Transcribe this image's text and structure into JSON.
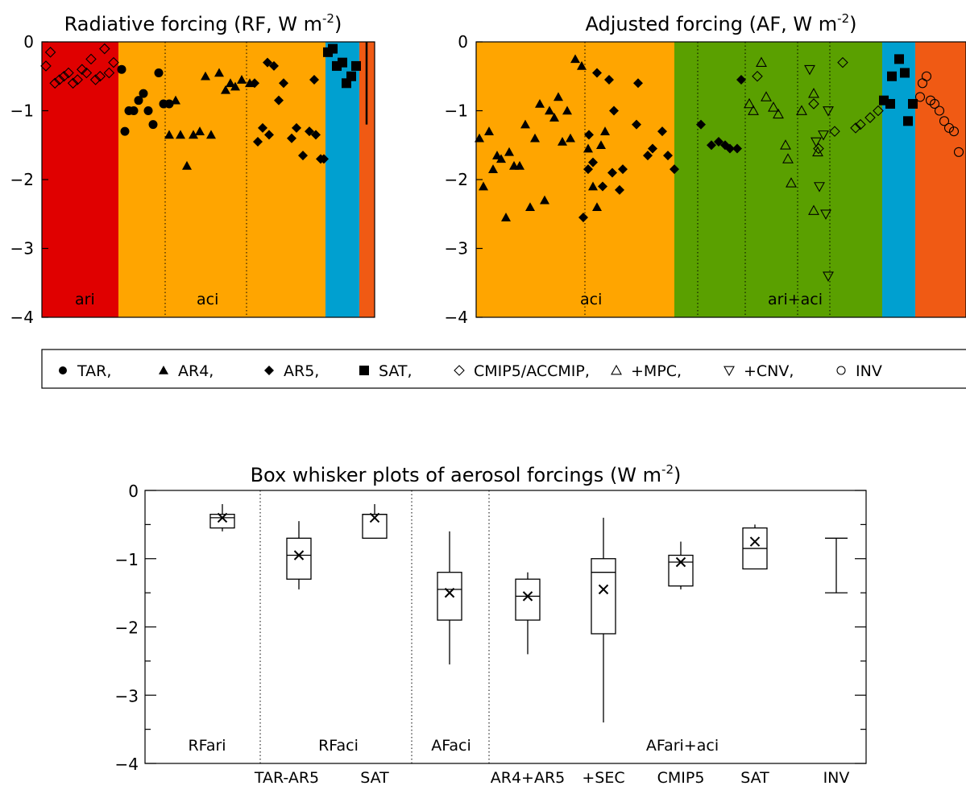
{
  "chart_data": [
    {
      "type": "scatter",
      "title": "Radiative forcing (RF, W m",
      "title_sup": "-2",
      "title_end": ")",
      "ylim": [
        -4,
        0
      ],
      "yticks": [
        "0",
        "-1",
        "-2",
        "-3",
        "-4"
      ],
      "regions": [
        {
          "label": "ari",
          "color": "#e00000"
        },
        {
          "label": "aci",
          "color": "#ffa500"
        },
        {
          "label": "",
          "color": "#00a0d0"
        },
        {
          "label": "",
          "color": "#f05a14"
        }
      ],
      "series": [
        {
          "name": "CMIP5/ACCMIP",
          "marker": "diamond-open",
          "x": [
            1,
            2,
            3,
            4,
            5,
            6,
            7,
            8,
            9,
            10,
            11,
            12,
            13,
            14,
            15,
            16
          ],
          "y": [
            -0.35,
            -0.15,
            -0.6,
            -0.55,
            -0.5,
            -0.45,
            -0.6,
            -0.55,
            -0.4,
            -0.45,
            -0.25,
            -0.55,
            -0.5,
            -0.1,
            -0.45,
            -0.3
          ]
        },
        {
          "name": "TAR",
          "marker": "circle",
          "x": [
            17,
            18,
            19,
            20,
            21,
            22,
            23,
            24,
            25,
            26,
            27
          ],
          "y": [
            -0.4,
            -1.3,
            -1.0,
            -1.0,
            -0.85,
            -0.75,
            -1.0,
            -1.2,
            -0.45,
            -0.9,
            -0.9
          ]
        },
        {
          "name": "AR4",
          "marker": "triangle",
          "x": [
            28,
            29,
            30,
            31,
            32,
            33,
            34,
            35,
            36,
            37,
            38,
            39,
            40,
            41
          ],
          "y": [
            -1.35,
            -0.85,
            -1.35,
            -1.8,
            -1.35,
            -1.3,
            -0.5,
            -1.35,
            -0.45,
            -0.7,
            -0.6,
            -0.65,
            -0.55,
            -0.6
          ]
        },
        {
          "name": "AR5",
          "marker": "diamond",
          "x": [
            42,
            43,
            44,
            45,
            46,
            47,
            48,
            49,
            50,
            51,
            52,
            53,
            54,
            55,
            56,
            57
          ],
          "y": [
            -0.6,
            -1.45,
            -1.25,
            -0.3,
            -1.35,
            -0.35,
            -0.85,
            -0.6,
            -1.4,
            -1.25,
            -1.65,
            -1.3,
            -0.55,
            -1.35,
            -1.7,
            -1.7
          ]
        },
        {
          "name": "SAT",
          "marker": "square",
          "x": [
            58,
            59,
            60,
            61,
            62,
            63,
            64
          ],
          "y": [
            -0.15,
            -0.1,
            -0.35,
            -0.3,
            -0.6,
            -0.5,
            -0.35
          ]
        },
        {
          "name": "",
          "marker": "bar",
          "x": [
            65
          ],
          "y": [
            -1.2
          ]
        }
      ]
    },
    {
      "type": "scatter",
      "title": "Adjusted forcing (AF, W m",
      "title_sup": "-2",
      "title_end": ")",
      "ylim": [
        -4,
        0
      ],
      "yticks": [
        "0",
        "-1",
        "-2",
        "-3",
        "-4"
      ],
      "regions": [
        {
          "label": "aci",
          "color": "#ffa500"
        },
        {
          "label": "ari+aci",
          "color": "#5aa000"
        },
        {
          "label": "",
          "color": "#00a0d0"
        },
        {
          "label": "",
          "color": "#f05a14"
        }
      ],
      "series": [
        {
          "name": "AR4",
          "marker": "triangle",
          "x": [
            1,
            2,
            3,
            4,
            5,
            6,
            7,
            8,
            9,
            10,
            11,
            12,
            13,
            14,
            15,
            16,
            17,
            18,
            19,
            20,
            21,
            22,
            23,
            24,
            25,
            26,
            27,
            28
          ],
          "y": [
            -1.4,
            -2.1,
            -1.3,
            -1.85,
            -1.65,
            -1.7,
            -2.55,
            -1.6,
            -1.8,
            -1.8,
            -1.2,
            -2.4,
            -1.4,
            -0.9,
            -2.3,
            -1.0,
            -1.1,
            -0.8,
            -1.45,
            -1.0,
            -1.4,
            -0.25,
            -0.35,
            -1.55,
            -2.1,
            -2.4,
            -1.5,
            -1.3
          ]
        },
        {
          "name": "AR5",
          "marker": "diamond",
          "x": [
            29,
            30,
            31,
            32,
            33,
            34,
            35,
            36,
            37,
            38,
            39,
            40,
            41,
            42,
            43,
            44,
            45,
            46,
            47,
            48,
            49,
            50,
            51,
            52,
            53
          ],
          "y": [
            -0.45,
            -1.75,
            -1.35,
            -2.55,
            -1.85,
            -2.1,
            -1.9,
            -2.15,
            -0.55,
            -1.0,
            -1.85,
            -0.6,
            -1.65,
            -1.2,
            -1.55,
            -1.3,
            -1.65,
            -1.85,
            -1.2,
            -1.5,
            -1.45,
            -1.5,
            -1.55,
            -1.55,
            -0.55
          ]
        },
        {
          "name": "CMIP5/ACCMIP",
          "marker": "diamond-open",
          "x": [
            54,
            55,
            56,
            57,
            58,
            59,
            60,
            61,
            62
          ],
          "y": [
            -0.5,
            -0.9,
            -1.55,
            -1.3,
            -0.3,
            -1.25,
            -1.2,
            -1.1,
            -1.0
          ]
        },
        {
          "name": "+MPC",
          "marker": "triangle-open",
          "x": [
            63,
            64,
            65,
            66,
            67,
            68,
            69,
            70,
            71,
            72,
            73,
            74,
            75
          ],
          "y": [
            -0.3,
            -0.9,
            -1.0,
            -0.8,
            -0.95,
            -1.05,
            -1.5,
            -1.7,
            -2.05,
            -1.0,
            -0.75,
            -2.45,
            -1.6
          ]
        },
        {
          "name": "+CNV",
          "marker": "triangle-down-open",
          "x": [
            76,
            77,
            78,
            79,
            80,
            81,
            82
          ],
          "y": [
            -0.4,
            -1.45,
            -1.35,
            -2.1,
            -1.0,
            -2.5,
            -3.4
          ]
        },
        {
          "name": "SAT",
          "marker": "square",
          "x": [
            83,
            84,
            85,
            86,
            87,
            88,
            89
          ],
          "y": [
            -0.85,
            -0.9,
            -0.5,
            -0.25,
            -0.45,
            -1.15,
            -0.9
          ]
        },
        {
          "name": "INV",
          "marker": "circle-open",
          "x": [
            90,
            91,
            92,
            93,
            94,
            95,
            96,
            97,
            98,
            99
          ],
          "y": [
            -0.8,
            -0.6,
            -0.5,
            -0.85,
            -0.9,
            -1.0,
            -1.15,
            -1.25,
            -1.3,
            -1.6
          ]
        }
      ]
    },
    {
      "type": "box",
      "title": "Box whisker plots of aerosol forcings (W m",
      "title_sup": "-2",
      "title_end": ")",
      "ylim": [
        -4,
        0
      ],
      "yticks": [
        "0",
        "-1",
        "-2",
        "-3",
        "-4"
      ],
      "sections": [
        "RFari",
        "RFaci",
        "AFaci",
        "AFari+aci"
      ],
      "boxes": [
        {
          "label": "",
          "whisker_low": -0.6,
          "q1": -0.55,
          "median": -0.4,
          "q3": -0.35,
          "whisker_high": -0.2,
          "mean": -0.4
        },
        {
          "label": "TAR-AR5",
          "whisker_low": -1.45,
          "q1": -1.3,
          "median": -0.95,
          "q3": -0.7,
          "whisker_high": -0.45,
          "mean": -0.95
        },
        {
          "label": "SAT",
          "whisker_low": -0.7,
          "q1": -0.7,
          "median": -0.35,
          "q3": -0.35,
          "whisker_high": -0.2,
          "mean": -0.4
        },
        {
          "label": "",
          "whisker_low": -2.55,
          "q1": -1.9,
          "median": -1.45,
          "q3": -1.2,
          "whisker_high": -0.6,
          "mean": -1.5
        },
        {
          "label": "AR4+AR5",
          "whisker_low": -2.4,
          "q1": -1.9,
          "median": -1.55,
          "q3": -1.3,
          "whisker_high": -1.2,
          "mean": -1.55
        },
        {
          "label": "+SEC",
          "whisker_low": -3.4,
          "q1": -2.1,
          "median": -1.2,
          "q3": -1.0,
          "whisker_high": -0.4,
          "mean": -1.45
        },
        {
          "label": "CMIP5",
          "whisker_low": -1.45,
          "q1": -1.4,
          "median": -1.05,
          "q3": -0.95,
          "whisker_high": -0.75,
          "mean": -1.05
        },
        {
          "label": "SAT",
          "whisker_low": -1.15,
          "q1": -1.15,
          "median": -0.85,
          "q3": -0.55,
          "whisker_high": -0.5,
          "mean": -0.75
        },
        {
          "label": "INV",
          "range_only": true,
          "whisker_low": -1.5,
          "whisker_high": -0.7
        }
      ]
    }
  ],
  "legend": {
    "items": [
      {
        "symbol": "circle",
        "label": "TAR,"
      },
      {
        "symbol": "triangle",
        "label": "AR4,"
      },
      {
        "symbol": "diamond",
        "label": "AR5,"
      },
      {
        "symbol": "square",
        "label": "SAT,"
      },
      {
        "symbol": "diamond-open",
        "label": "CMIP5/ACCMIP,"
      },
      {
        "symbol": "triangle-open",
        "label": "+MPC,"
      },
      {
        "symbol": "triangle-down-open",
        "label": "+CNV,"
      },
      {
        "symbol": "circle-open",
        "label": "INV"
      }
    ]
  }
}
